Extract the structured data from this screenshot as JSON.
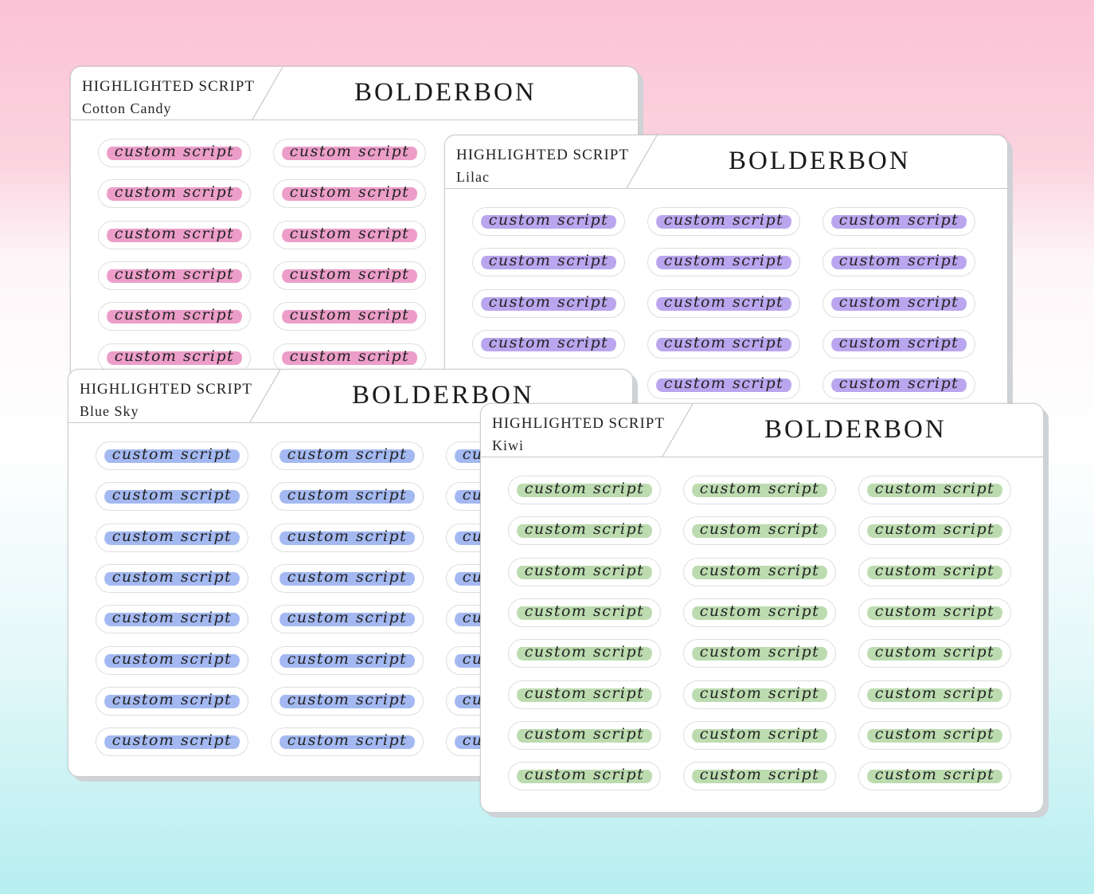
{
  "sticker_text": "custom script",
  "sheets": [
    {
      "id": "cotton-candy",
      "type_label": "HIGHLIGHTED SCRIPT",
      "color_label": "Cotton Candy",
      "brand": "BOLDERBON",
      "highlight": "#ec9ec9",
      "cols": 2,
      "rows": 6
    },
    {
      "id": "lilac",
      "type_label": "HIGHLIGHTED SCRIPT",
      "color_label": "Lilac",
      "brand": "BOLDERBON",
      "highlight": "#b9a6ee",
      "cols": 3,
      "rows": 5
    },
    {
      "id": "blue-sky",
      "type_label": "HIGHLIGHTED SCRIPT",
      "color_label": "Blue Sky",
      "brand": "BOLDERBON",
      "highlight": "#a4b9f1",
      "cols": 3,
      "rows": 8
    },
    {
      "id": "kiwi",
      "type_label": "HIGHLIGHTED SCRIPT",
      "color_label": "Kiwi",
      "brand": "BOLDERBON",
      "highlight": "#bcdcb0",
      "cols": 3,
      "rows": 8
    }
  ]
}
